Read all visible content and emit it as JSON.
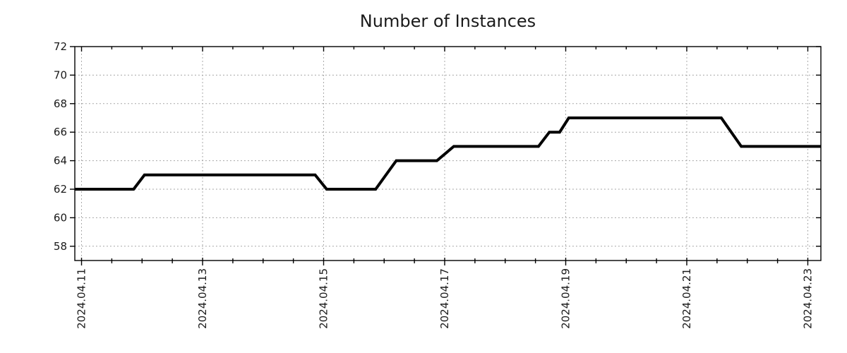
{
  "page": {
    "background": "#ffffff"
  },
  "chart_data": {
    "type": "line",
    "title": "Number of Instances",
    "xlabel": "",
    "ylabel": "",
    "legend": "none",
    "grid": "dotted gray lines at major ticks, both axes",
    "line_color": "#000000",
    "line_width": 4,
    "border_color": "#000000",
    "grid_color": "#9e9e9e",
    "text_color": "#1a1a1a",
    "ylim": [
      57,
      72
    ],
    "yticks": [
      58,
      60,
      62,
      64,
      66,
      68,
      70,
      72
    ],
    "xlim_days": [
      10.889,
      23.216
    ],
    "x_major_tick_days": [
      11,
      13,
      15,
      17,
      19,
      21,
      23
    ],
    "x_tick_labels": [
      "2024.04.11",
      "2024.04.13",
      "2024.04.15",
      "2024.04.17",
      "2024.04.19",
      "2024.04.21",
      "2024.04.23"
    ],
    "x_minor_step_days": 0.5,
    "points": [
      [
        10.889,
        62
      ],
      [
        11.86,
        62
      ],
      [
        12.04,
        63
      ],
      [
        14.86,
        63
      ],
      [
        15.05,
        62
      ],
      [
        15.86,
        62
      ],
      [
        16.2,
        64
      ],
      [
        16.87,
        64
      ],
      [
        17.15,
        65
      ],
      [
        18.55,
        65
      ],
      [
        18.73,
        66
      ],
      [
        18.9,
        66
      ],
      [
        19.05,
        67
      ],
      [
        21.57,
        67
      ],
      [
        21.9,
        65
      ],
      [
        23.216,
        65
      ]
    ],
    "daily_values": {
      "dates": [
        "2024.04.11",
        "2024.04.12",
        "2024.04.13",
        "2024.04.14",
        "2024.04.15",
        "2024.04.16",
        "2024.04.17",
        "2024.04.18",
        "2024.04.19",
        "2024.04.20",
        "2024.04.21",
        "2024.04.22",
        "2024.04.23"
      ],
      "values": [
        62,
        63,
        63,
        63,
        62,
        64,
        65,
        65,
        67,
        67,
        67,
        65,
        65
      ]
    }
  }
}
